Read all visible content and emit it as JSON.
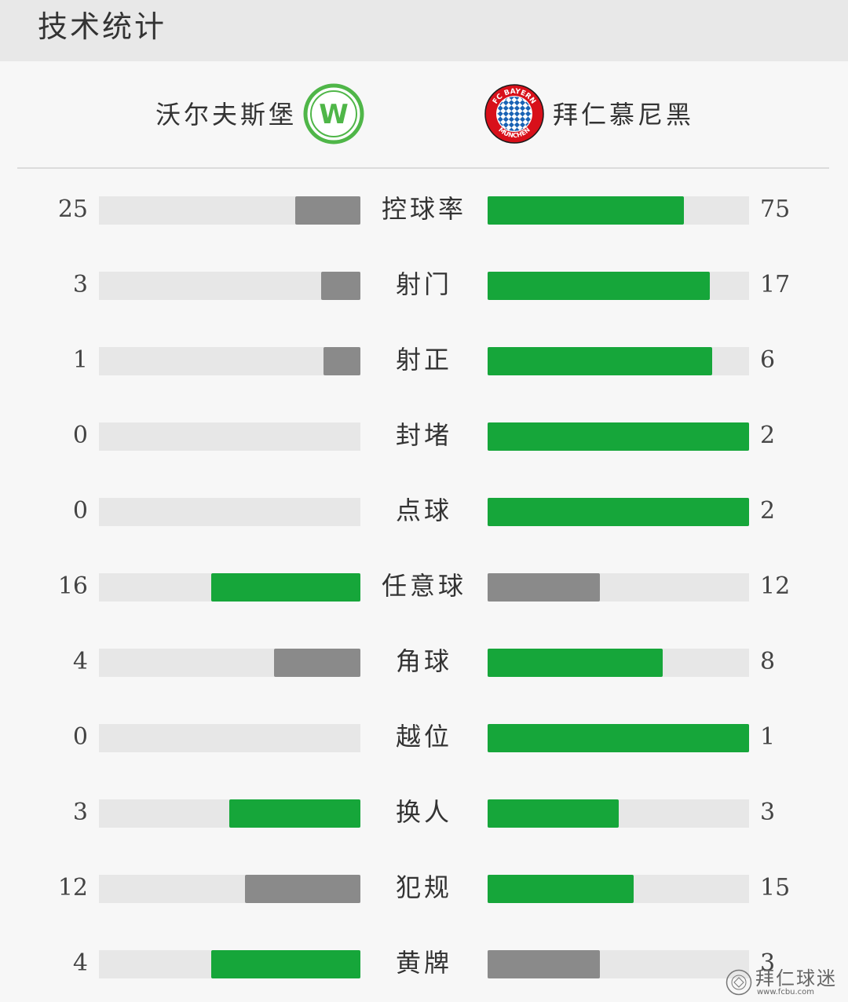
{
  "header": {
    "title": "技术统计"
  },
  "teams": {
    "home": {
      "name": "沃尔夫斯堡",
      "logo_text": "W",
      "color": "#16a63a"
    },
    "away": {
      "name": "拜仁慕尼黑",
      "logo_text_top": "FC BAYERN",
      "logo_text_bottom": "MÜNCHEN",
      "color": "#d8101a"
    }
  },
  "colors": {
    "leader": "#16a63a",
    "trailer": "#8a8a8a",
    "track": "#e7e7e7"
  },
  "stats": [
    {
      "label": "控球率",
      "home": 25,
      "away": 75,
      "home_share": 0.25,
      "away_share": 0.75,
      "home_color": "gray",
      "away_color": "green"
    },
    {
      "label": "射门",
      "home": 3,
      "away": 17,
      "home_share": 0.15,
      "away_share": 0.85,
      "home_color": "gray",
      "away_color": "green"
    },
    {
      "label": "射正",
      "home": 1,
      "away": 6,
      "home_share": 0.14,
      "away_share": 0.86,
      "home_color": "gray",
      "away_color": "green"
    },
    {
      "label": "封堵",
      "home": 0,
      "away": 2,
      "home_share": 0,
      "away_share": 1,
      "home_color": "gray",
      "away_color": "green"
    },
    {
      "label": "点球",
      "home": 0,
      "away": 2,
      "home_share": 0,
      "away_share": 1,
      "home_color": "gray",
      "away_color": "green"
    },
    {
      "label": "任意球",
      "home": 16,
      "away": 12,
      "home_share": 0.57,
      "away_share": 0.43,
      "home_color": "green",
      "away_color": "gray"
    },
    {
      "label": "角球",
      "home": 4,
      "away": 8,
      "home_share": 0.33,
      "away_share": 0.67,
      "home_color": "gray",
      "away_color": "green"
    },
    {
      "label": "越位",
      "home": 0,
      "away": 1,
      "home_share": 0,
      "away_share": 1,
      "home_color": "gray",
      "away_color": "green"
    },
    {
      "label": "换人",
      "home": 3,
      "away": 3,
      "home_share": 0.5,
      "away_share": 0.5,
      "home_color": "green",
      "away_color": "green"
    },
    {
      "label": "犯规",
      "home": 12,
      "away": 15,
      "home_share": 0.44,
      "away_share": 0.56,
      "home_color": "gray",
      "away_color": "green"
    },
    {
      "label": "黄牌",
      "home": 4,
      "away": 3,
      "home_share": 0.57,
      "away_share": 0.43,
      "home_color": "green",
      "away_color": "gray"
    }
  ],
  "watermark": {
    "text": "拜仁球迷",
    "url": "www.fcbu.com"
  }
}
